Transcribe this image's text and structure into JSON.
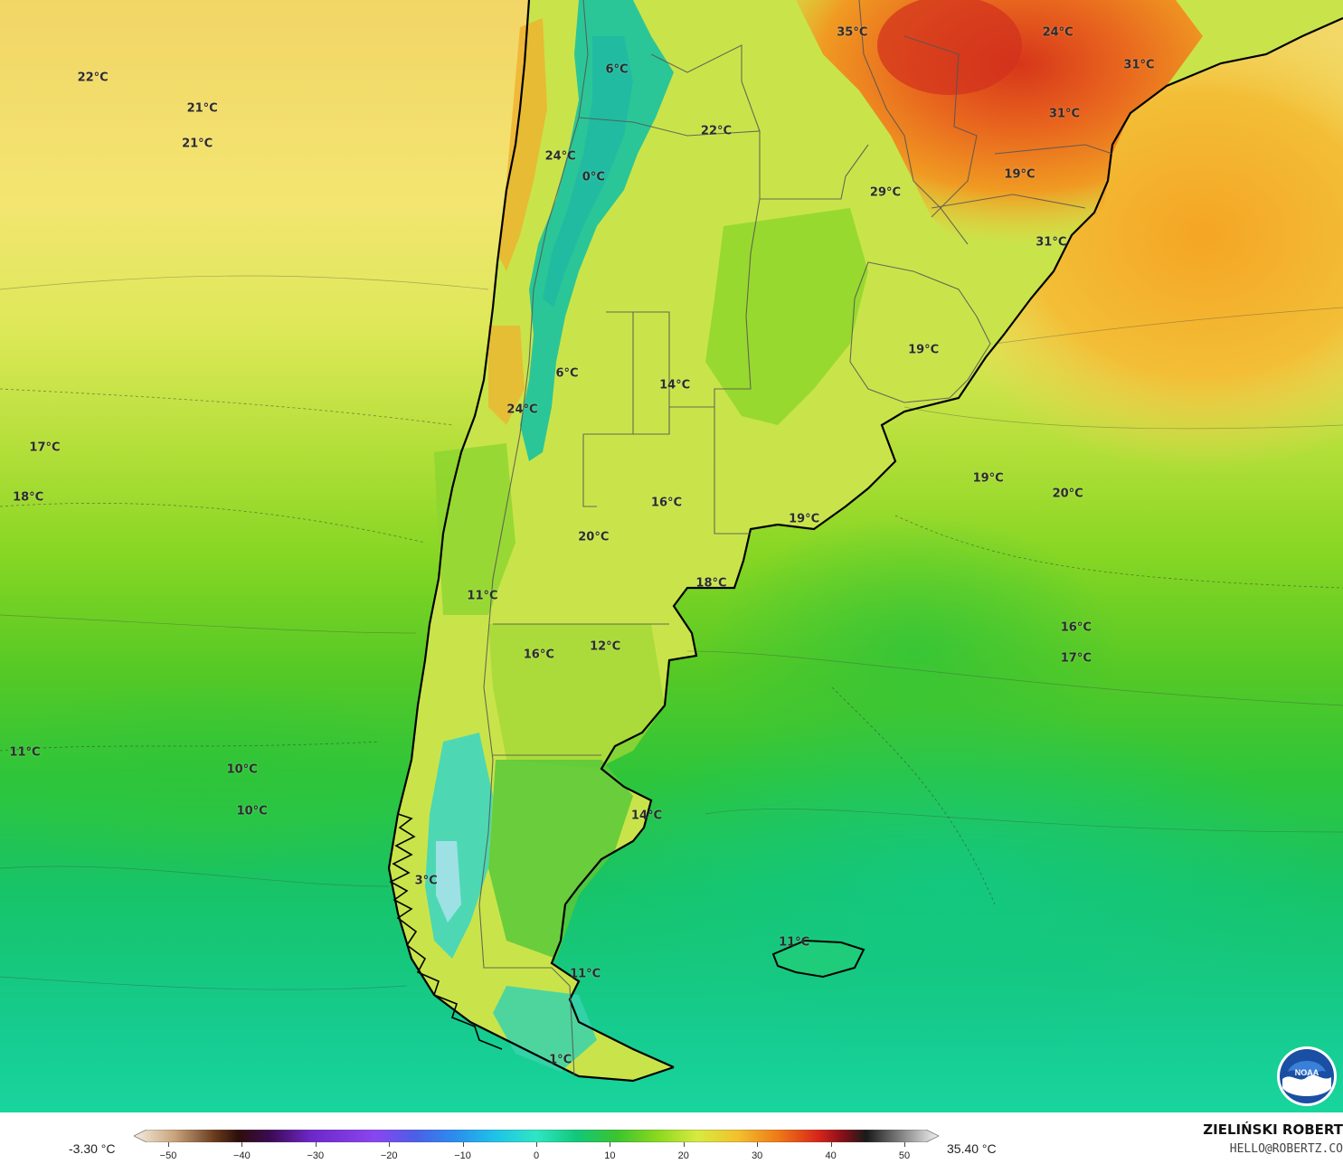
{
  "temperature_labels": [
    {
      "text": "22°C",
      "lon": -99.4,
      "lat": -8.2
    },
    {
      "text": "21°C",
      "lon": -92.8,
      "lat": -10.7
    },
    {
      "text": "21°C",
      "lon": -93.1,
      "lat": -13.5
    },
    {
      "text": "6°C",
      "lon": -67.8,
      "lat": -7.6
    },
    {
      "text": "24°C",
      "lon": -71.2,
      "lat": -14.5
    },
    {
      "text": "0°C",
      "lon": -69.2,
      "lat": -16.2
    },
    {
      "text": "22°C",
      "lon": -61.8,
      "lat": -12.5
    },
    {
      "text": "35°C",
      "lon": -53.6,
      "lat": -4.6
    },
    {
      "text": "24°C",
      "lon": -41.2,
      "lat": -4.6
    },
    {
      "text": "31°C",
      "lon": -36.3,
      "lat": -7.2
    },
    {
      "text": "31°C",
      "lon": -40.8,
      "lat": -11.1
    },
    {
      "text": "19°C",
      "lon": -43.5,
      "lat": -16.0
    },
    {
      "text": "29°C",
      "lon": -51.6,
      "lat": -17.4
    },
    {
      "text": "31°C",
      "lon": -41.6,
      "lat": -21.4
    },
    {
      "text": "19°C",
      "lon": -49.3,
      "lat": -30.0
    },
    {
      "text": "6°C",
      "lon": -70.8,
      "lat": -31.9
    },
    {
      "text": "14°C",
      "lon": -64.3,
      "lat": -32.8
    },
    {
      "text": "24°C",
      "lon": -73.5,
      "lat": -34.8
    },
    {
      "text": "17°C",
      "lon": -102.3,
      "lat": -37.8
    },
    {
      "text": "18°C",
      "lon": -103.3,
      "lat": -41.8
    },
    {
      "text": "16°C",
      "lon": -64.8,
      "lat": -42.2
    },
    {
      "text": "20°C",
      "lon": -69.2,
      "lat": -45.0
    },
    {
      "text": "19°C",
      "lon": -56.5,
      "lat": -43.5
    },
    {
      "text": "19°C",
      "lon": -45.4,
      "lat": -40.3
    },
    {
      "text": "20°C",
      "lon": -40.6,
      "lat": -41.5
    },
    {
      "text": "18°C",
      "lon": -62.1,
      "lat": -48.7
    },
    {
      "text": "11°C",
      "lon": -75.9,
      "lat": -49.7
    },
    {
      "text": "16°C",
      "lon": -40.1,
      "lat": -52.2
    },
    {
      "text": "17°C",
      "lon": -40.1,
      "lat": -54.7
    },
    {
      "text": "12°C",
      "lon": -68.5,
      "lat": -53.7
    },
    {
      "text": "16°C",
      "lon": -72.5,
      "lat": -54.4
    },
    {
      "text": "11°C",
      "lon": -103.5,
      "lat": -62.2
    },
    {
      "text": "10°C",
      "lon": -90.4,
      "lat": -63.6
    },
    {
      "text": "10°C",
      "lon": -89.8,
      "lat": -66.9
    },
    {
      "text": "14°C",
      "lon": -66.0,
      "lat": -67.3
    },
    {
      "text": "3°C",
      "lon": -79.3,
      "lat": -72.5
    },
    {
      "text": "11°C",
      "lon": -57.1,
      "lat": -77.4
    },
    {
      "text": "11°C",
      "lon": -69.7,
      "lat": -79.9
    },
    {
      "text": "1°C",
      "lon": -71.2,
      "lat": -86.8
    }
  ],
  "legend": {
    "min_label": "-3.30 °C",
    "max_label": "35.40 °C",
    "ticks": [
      "−50",
      "−40",
      "−30",
      "−20",
      "−10",
      "0",
      "10",
      "20",
      "30",
      "40",
      "50"
    ],
    "range": [
      -50,
      50
    ],
    "stops": [
      {
        "v": -50,
        "c": "#f4ede0"
      },
      {
        "v": -45,
        "c": "#c9a57c"
      },
      {
        "v": -40,
        "c": "#6a3b1e"
      },
      {
        "v": -37,
        "c": "#2d0e0a"
      },
      {
        "v": -33,
        "c": "#3d0a55"
      },
      {
        "v": -28,
        "c": "#6d27c9"
      },
      {
        "v": -20,
        "c": "#8a45f0"
      },
      {
        "v": -15,
        "c": "#4b5fe8"
      },
      {
        "v": -10,
        "c": "#2a8fee"
      },
      {
        "v": -5,
        "c": "#1fc3e8"
      },
      {
        "v": 0,
        "c": "#2ee6c4"
      },
      {
        "v": 5,
        "c": "#10c87a"
      },
      {
        "v": 10,
        "c": "#3bc42f"
      },
      {
        "v": 15,
        "c": "#8ad81e"
      },
      {
        "v": 20,
        "c": "#d8ea40"
      },
      {
        "v": 25,
        "c": "#f2c12e"
      },
      {
        "v": 30,
        "c": "#ef7a17"
      },
      {
        "v": 35,
        "c": "#d8261a"
      },
      {
        "v": 38,
        "c": "#8a0f18"
      },
      {
        "v": 41,
        "c": "#1a1a1a"
      },
      {
        "v": 45,
        "c": "#7a7a7a"
      },
      {
        "v": 50,
        "c": "#f2f2f2"
      }
    ]
  },
  "credit": {
    "name": "ZIELIŃSKI ROBERT",
    "email": "HELLO@ROBERTZ.CO"
  },
  "colors": {
    "ocean_warm": "#f3d36a",
    "ocean_cool": "#16d49c",
    "land_hot": "#e8641e",
    "andes": "#23c49b",
    "coastline": "#000000"
  },
  "logo": "noaa-logo"
}
